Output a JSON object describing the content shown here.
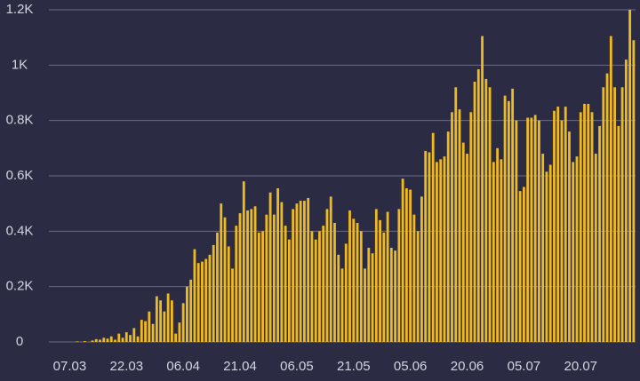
{
  "chart_data": {
    "type": "bar",
    "color": "#eeba20",
    "grid": true,
    "ylim": [
      0,
      1200
    ],
    "yticks": [
      0,
      {
        "value": 200,
        "label": "0.2K"
      },
      {
        "value": 400,
        "label": "0.4K"
      },
      {
        "value": 600,
        "label": "0.6K"
      },
      {
        "value": 800,
        "label": "0.8K"
      },
      {
        "value": 1000,
        "label": "1K"
      },
      {
        "value": 1200,
        "label": "1.2K"
      }
    ],
    "categories": [
      null,
      null,
      null,
      null,
      null,
      "07.03",
      null,
      null,
      null,
      null,
      null,
      null,
      null,
      null,
      null,
      null,
      null,
      null,
      null,
      null,
      "22.03",
      null,
      null,
      null,
      null,
      null,
      null,
      null,
      null,
      null,
      null,
      null,
      null,
      null,
      null,
      "06.04",
      null,
      null,
      null,
      null,
      null,
      null,
      null,
      null,
      null,
      null,
      null,
      null,
      null,
      null,
      "21.04",
      null,
      null,
      null,
      null,
      null,
      null,
      null,
      null,
      null,
      null,
      null,
      null,
      null,
      null,
      "06.05",
      null,
      null,
      null,
      null,
      null,
      null,
      null,
      null,
      null,
      null,
      null,
      null,
      null,
      null,
      "21.05",
      null,
      null,
      null,
      null,
      null,
      null,
      null,
      null,
      null,
      null,
      null,
      null,
      null,
      null,
      "05.06",
      null,
      null,
      null,
      null,
      null,
      null,
      null,
      null,
      null,
      null,
      null,
      null,
      null,
      null,
      "20.06",
      null,
      null,
      null,
      null,
      null,
      null,
      null,
      null,
      null,
      null,
      null,
      null,
      null,
      null,
      "05.07",
      null,
      null,
      null,
      null,
      null,
      null,
      null,
      null,
      null,
      null,
      null,
      null,
      null,
      null,
      "20.07",
      null,
      null,
      null,
      null,
      null,
      null,
      null,
      null,
      null,
      null,
      null,
      null,
      null,
      null
    ],
    "values": [
      0,
      0,
      0,
      0,
      0,
      0,
      0,
      2,
      0,
      3,
      0,
      5,
      10,
      8,
      15,
      12,
      20,
      8,
      30,
      15,
      35,
      25,
      50,
      20,
      80,
      75,
      110,
      65,
      165,
      150,
      110,
      175,
      150,
      30,
      70,
      140,
      200,
      225,
      335,
      285,
      290,
      300,
      315,
      350,
      395,
      500,
      450,
      345,
      265,
      420,
      465,
      580,
      475,
      480,
      490,
      395,
      400,
      460,
      540,
      460,
      555,
      505,
      420,
      370,
      480,
      500,
      510,
      510,
      520,
      400,
      370,
      400,
      420,
      480,
      525,
      430,
      315,
      265,
      355,
      475,
      445,
      430,
      400,
      265,
      340,
      320,
      480,
      440,
      395,
      470,
      340,
      330,
      480,
      590,
      555,
      550,
      460,
      400,
      525,
      690,
      685,
      755,
      650,
      660,
      670,
      760,
      830,
      920,
      840,
      720,
      680,
      830,
      940,
      985,
      1105,
      950,
      920,
      650,
      700,
      660,
      890,
      870,
      915,
      800,
      545,
      560,
      810,
      810,
      820,
      800,
      680,
      615,
      640,
      835,
      850,
      800,
      850,
      760,
      650,
      670,
      830,
      860,
      860,
      830,
      680,
      780,
      920,
      970,
      1105,
      920,
      780,
      920,
      1020,
      1200,
      1090
    ]
  }
}
